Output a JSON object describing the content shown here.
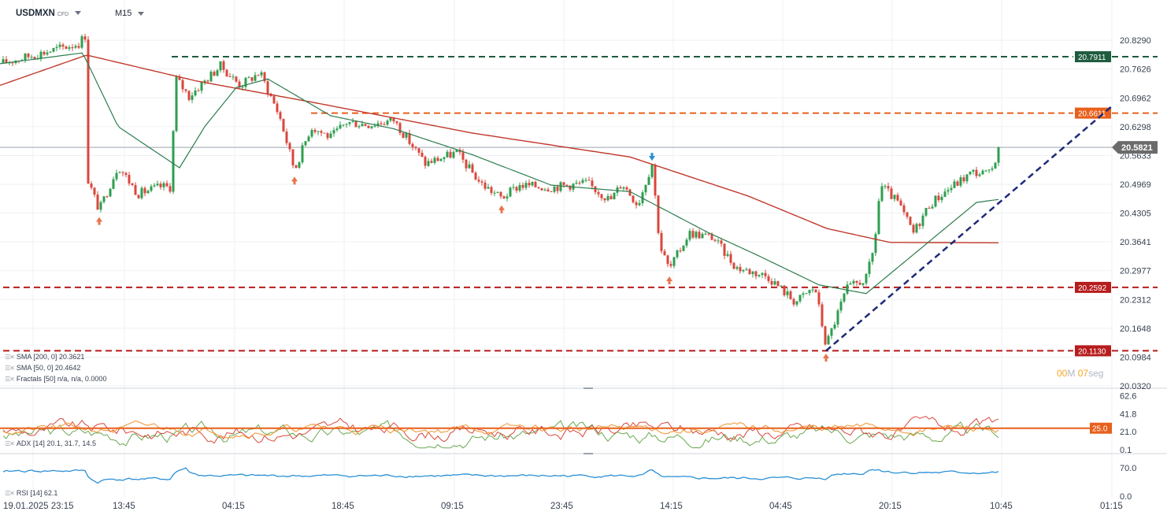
{
  "header": {
    "symbol": "USDMXN",
    "symbol_type": "CFD",
    "timeframe": "M15"
  },
  "timer": {
    "minutes": "00",
    "minutes_unit": "M",
    "seconds": "07",
    "seconds_unit": "seg"
  },
  "main_axis": {
    "ticks": [
      "20.8290",
      "20.7626",
      "20.6962",
      "20.6298",
      "20.5633",
      "20.4969",
      "20.4305",
      "20.3641",
      "20.2977",
      "20.2312",
      "20.1648",
      "20.0984",
      "20.0320"
    ]
  },
  "price_lines": [
    {
      "label": "20.7911",
      "value": 20.7911,
      "color": "#1f5c3f",
      "role": "resistance"
    },
    {
      "label": "20.6611",
      "value": 20.6611,
      "color": "#e8601c",
      "role": "resistance"
    },
    {
      "label": "20.5821",
      "value": 20.5821,
      "color": "#6b6b6b",
      "role": "current-price"
    },
    {
      "label": "20.2592",
      "value": 20.2592,
      "color": "#b71c1c",
      "role": "support"
    },
    {
      "label": "20.1130",
      "value": 20.113,
      "color": "#b71c1c",
      "role": "support"
    }
  ],
  "indicators": {
    "sma200": "SMA [200, 0] 20.3621",
    "sma50": "SMA [50, 0] 20.4642",
    "fractals": "Fractals [50] n/a, n/a, 0.0000",
    "adx": "ADX [14] 20.1, 31.7, 14.5",
    "rsi": "RSI [14] 62.1"
  },
  "adx_axis": {
    "ticks": [
      "62.6",
      "41.8",
      "21.0",
      "0.1"
    ],
    "level_label": "25.0",
    "level": 25.0
  },
  "rsi_axis": {
    "ticks": [
      "70.0",
      "0.0"
    ]
  },
  "time_axis": {
    "labels": [
      "19.01.2025  23:15",
      "13:45",
      "04:15",
      "18:45",
      "09:15",
      "23:45",
      "14:15",
      "04:45",
      "20:15",
      "10:45",
      "01:15"
    ]
  },
  "colors": {
    "up": "#2e9e4f",
    "down": "#d9473c",
    "sma50": "#2e7d4f",
    "sma200": "#c0392b",
    "trendline": "#1e2a78",
    "rsi": "#2a8fd6",
    "adx_main": "#e8601c",
    "adx_plus": "#6aa84f",
    "adx_minus": "#f29a38",
    "fractal_down": "#e8734a",
    "fractal_up": "#2a8fd6"
  },
  "chart_data": {
    "type": "candlestick",
    "instrument": "USDMXN",
    "timeframe": "M15",
    "y_range": [
      20.032,
      20.862
    ],
    "anchors": [
      {
        "t": 0,
        "p": 20.775
      },
      {
        "t": 100,
        "p": 20.822
      },
      {
        "t": 108,
        "p": 20.84
      },
      {
        "t": 112,
        "p": 20.505
      },
      {
        "t": 126,
        "p": 20.437
      },
      {
        "t": 150,
        "p": 20.54
      },
      {
        "t": 175,
        "p": 20.475
      },
      {
        "t": 205,
        "p": 20.492
      },
      {
        "t": 218,
        "p": 20.49
      },
      {
        "t": 222,
        "p": 20.745
      },
      {
        "t": 240,
        "p": 20.7
      },
      {
        "t": 280,
        "p": 20.77
      },
      {
        "t": 305,
        "p": 20.725
      },
      {
        "t": 330,
        "p": 20.755
      },
      {
        "t": 355,
        "p": 20.655
      },
      {
        "t": 374,
        "p": 20.53
      },
      {
        "t": 395,
        "p": 20.63
      },
      {
        "t": 420,
        "p": 20.605
      },
      {
        "t": 440,
        "p": 20.64
      },
      {
        "t": 470,
        "p": 20.635
      },
      {
        "t": 500,
        "p": 20.645
      },
      {
        "t": 540,
        "p": 20.545
      },
      {
        "t": 580,
        "p": 20.57
      },
      {
        "t": 610,
        "p": 20.5
      },
      {
        "t": 637,
        "p": 20.465
      },
      {
        "t": 660,
        "p": 20.495
      },
      {
        "t": 700,
        "p": 20.49
      },
      {
        "t": 745,
        "p": 20.5
      },
      {
        "t": 775,
        "p": 20.46
      },
      {
        "t": 790,
        "p": 20.5
      },
      {
        "t": 810,
        "p": 20.45
      },
      {
        "t": 828,
        "p": 20.545
      },
      {
        "t": 838,
        "p": 20.355
      },
      {
        "t": 850,
        "p": 20.3
      },
      {
        "t": 875,
        "p": 20.385
      },
      {
        "t": 905,
        "p": 20.375
      },
      {
        "t": 935,
        "p": 20.305
      },
      {
        "t": 975,
        "p": 20.285
      },
      {
        "t": 1010,
        "p": 20.225
      },
      {
        "t": 1035,
        "p": 20.26
      },
      {
        "t": 1049,
        "p": 20.125
      },
      {
        "t": 1075,
        "p": 20.255
      },
      {
        "t": 1100,
        "p": 20.28
      },
      {
        "t": 1110,
        "p": 20.35
      },
      {
        "t": 1118,
        "p": 20.495
      },
      {
        "t": 1140,
        "p": 20.455
      },
      {
        "t": 1160,
        "p": 20.385
      },
      {
        "t": 1180,
        "p": 20.45
      },
      {
        "t": 1200,
        "p": 20.48
      },
      {
        "t": 1235,
        "p": 20.525
      },
      {
        "t": 1258,
        "p": 20.52
      },
      {
        "t": 1268,
        "p": 20.582
      }
    ],
    "sma50": [
      {
        "t": 0,
        "p": 20.775
      },
      {
        "t": 105,
        "p": 20.8
      },
      {
        "t": 150,
        "p": 20.63
      },
      {
        "t": 228,
        "p": 20.535
      },
      {
        "t": 260,
        "p": 20.63
      },
      {
        "t": 300,
        "p": 20.72
      },
      {
        "t": 340,
        "p": 20.74
      },
      {
        "t": 420,
        "p": 20.655
      },
      {
        "t": 500,
        "p": 20.625
      },
      {
        "t": 600,
        "p": 20.565
      },
      {
        "t": 700,
        "p": 20.495
      },
      {
        "t": 800,
        "p": 20.48
      },
      {
        "t": 900,
        "p": 20.385
      },
      {
        "t": 960,
        "p": 20.335
      },
      {
        "t": 1040,
        "p": 20.265
      },
      {
        "t": 1100,
        "p": 20.245
      },
      {
        "t": 1160,
        "p": 20.335
      },
      {
        "t": 1240,
        "p": 20.455
      },
      {
        "t": 1268,
        "p": 20.462
      }
    ],
    "sma200": [
      {
        "t": 0,
        "p": 20.725
      },
      {
        "t": 110,
        "p": 20.795
      },
      {
        "t": 250,
        "p": 20.735
      },
      {
        "t": 400,
        "p": 20.685
      },
      {
        "t": 600,
        "p": 20.615
      },
      {
        "t": 800,
        "p": 20.56
      },
      {
        "t": 950,
        "p": 20.47
      },
      {
        "t": 1050,
        "p": 20.395
      },
      {
        "t": 1130,
        "p": 20.363
      },
      {
        "t": 1268,
        "p": 20.362
      }
    ],
    "trendline": [
      {
        "t": 1049,
        "p": 20.113
      },
      {
        "t": 1414,
        "p": 20.68
      }
    ],
    "fractals": [
      {
        "t": 126,
        "p": 20.425,
        "dir": "down"
      },
      {
        "t": 374,
        "p": 20.518,
        "dir": "down"
      },
      {
        "t": 637,
        "p": 20.452,
        "dir": "down"
      },
      {
        "t": 850,
        "p": 20.288,
        "dir": "down"
      },
      {
        "t": 1049,
        "p": 20.11,
        "dir": "down"
      },
      {
        "t": 828,
        "p": 20.562,
        "dir": "up"
      }
    ]
  }
}
